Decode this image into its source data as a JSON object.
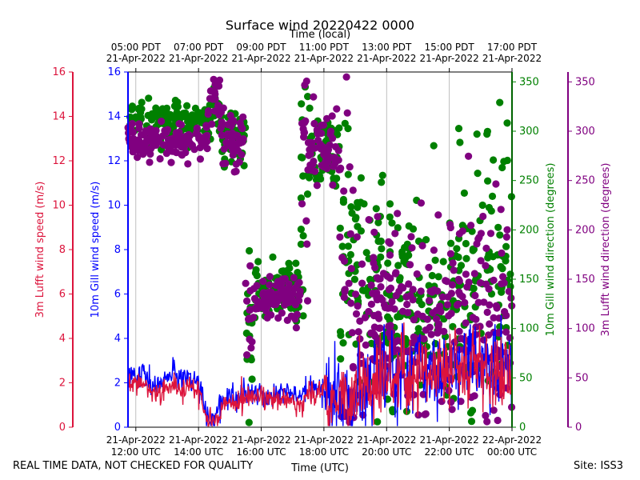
{
  "chart_data": {
    "type": "scatter",
    "title": "Surface wind 20220422 0000",
    "top_axis_label": "Time (local)",
    "xlabel": "Time (UTC)",
    "x_range_hours_utc": [
      11.75,
      24.0
    ],
    "bottom_ticks": [
      {
        "t": 12,
        "line1": "21-Apr-2022",
        "line2": "12:00 UTC"
      },
      {
        "t": 14,
        "line1": "21-Apr-2022",
        "line2": "14:00 UTC"
      },
      {
        "t": 16,
        "line1": "21-Apr-2022",
        "line2": "16:00 UTC"
      },
      {
        "t": 18,
        "line1": "21-Apr-2022",
        "line2": "18:00 UTC"
      },
      {
        "t": 20,
        "line1": "21-Apr-2022",
        "line2": "20:00 UTC"
      },
      {
        "t": 22,
        "line1": "21-Apr-2022",
        "line2": "22:00 UTC"
      },
      {
        "t": 24,
        "line1": "22-Apr-2022",
        "line2": "00:00 UTC"
      }
    ],
    "top_ticks": [
      {
        "t": 12,
        "line1": "05:00 PDT",
        "line2": "21-Apr-2022"
      },
      {
        "t": 14,
        "line1": "07:00 PDT",
        "line2": "21-Apr-2022"
      },
      {
        "t": 16,
        "line1": "09:00 PDT",
        "line2": "21-Apr-2022"
      },
      {
        "t": 18,
        "line1": "11:00 PDT",
        "line2": "21-Apr-2022"
      },
      {
        "t": 20,
        "line1": "13:00 PDT",
        "line2": "21-Apr-2022"
      },
      {
        "t": 22,
        "line1": "15:00 PDT",
        "line2": "21-Apr-2022"
      },
      {
        "t": 24,
        "line1": "17:00 PDT",
        "line2": "21-Apr-2022"
      }
    ],
    "axes": {
      "lufft_speed": {
        "label": "3m Lufft wind speed (m/s)",
        "ylim": [
          0,
          16
        ],
        "ticks": [
          0,
          2,
          4,
          6,
          8,
          10,
          12,
          14,
          16
        ],
        "color": "#dc143c"
      },
      "gill_speed": {
        "label": "10m Gill wind speed (m/s)",
        "ylim": [
          0,
          16
        ],
        "ticks": [
          0,
          2,
          4,
          6,
          8,
          10,
          12,
          14,
          16
        ],
        "color": "#0000ff"
      },
      "gill_dir": {
        "label": "10m Gill wind direction (degrees)",
        "ylim": [
          0,
          360
        ],
        "ticks": [
          0,
          50,
          100,
          150,
          200,
          250,
          300,
          350
        ],
        "color": "#008000"
      },
      "lufft_dir": {
        "label": "3m Lufft wind direction (degrees)",
        "ylim": [
          0,
          360
        ],
        "ticks": [
          0,
          50,
          100,
          150,
          200,
          250,
          300,
          350
        ],
        "color": "#800080"
      }
    },
    "series": [
      {
        "name": "10m Gill wind speed",
        "kind": "line",
        "color": "#0000ff",
        "x": [
          11.75,
          12.0,
          12.25,
          12.5,
          12.75,
          13.0,
          13.25,
          13.5,
          13.75,
          14.0,
          14.1,
          14.25,
          14.4,
          14.5,
          14.6,
          14.75,
          15.0,
          15.25,
          15.5,
          15.75,
          16.0,
          16.25,
          16.5,
          16.75,
          17.0,
          17.25,
          17.5,
          17.75,
          18.0,
          18.25,
          18.5,
          18.75,
          19.0,
          19.25,
          19.5,
          19.75,
          20.0,
          20.25,
          20.5,
          20.75,
          21.0,
          21.25,
          21.5,
          21.75,
          22.0,
          22.25,
          22.5,
          22.75,
          23.0,
          23.25,
          23.5,
          23.75,
          24.0
        ],
        "y": [
          2.2,
          2.3,
          2.6,
          2.0,
          1.8,
          2.3,
          2.4,
          2.2,
          2.3,
          2.1,
          1.5,
          0.6,
          0.4,
          0.3,
          0.6,
          1.0,
          1.5,
          1.3,
          1.6,
          1.5,
          1.7,
          1.3,
          1.5,
          1.6,
          1.4,
          1.3,
          1.8,
          1.6,
          1.9,
          1.5,
          1.7,
          1.2,
          1.8,
          2.0,
          1.8,
          2.5,
          2.7,
          2.5,
          2.8,
          2.6,
          3.0,
          2.4,
          2.6,
          3.0,
          2.9,
          2.7,
          2.8,
          3.0,
          2.6,
          2.4,
          2.8,
          3.2,
          3.0
        ]
      },
      {
        "name": "3m Lufft wind speed",
        "kind": "line",
        "color": "#dc143c",
        "x": [
          11.75,
          12.0,
          12.25,
          12.5,
          12.75,
          13.0,
          13.25,
          13.5,
          13.75,
          14.0,
          14.1,
          14.25,
          14.4,
          14.5,
          14.6,
          14.75,
          15.0,
          15.25,
          15.5,
          15.75,
          16.0,
          16.25,
          16.5,
          16.75,
          17.0,
          17.25,
          17.5,
          17.75,
          18.0,
          18.25,
          18.5,
          18.75,
          19.0,
          19.25,
          19.5,
          19.75,
          20.0,
          20.25,
          20.5,
          20.75,
          21.0,
          21.25,
          21.5,
          21.75,
          22.0,
          22.25,
          22.5,
          22.75,
          23.0,
          23.25,
          23.5,
          23.75,
          24.0
        ],
        "y": [
          1.8,
          1.9,
          2.1,
          1.6,
          1.5,
          1.9,
          1.8,
          1.6,
          1.8,
          1.7,
          1.2,
          0.4,
          0.2,
          0.2,
          0.4,
          0.8,
          1.2,
          1.1,
          1.4,
          1.3,
          1.4,
          1.1,
          1.3,
          1.4,
          1.2,
          1.1,
          1.6,
          1.4,
          1.6,
          1.3,
          1.5,
          1.0,
          1.5,
          1.7,
          1.6,
          2.2,
          2.4,
          2.2,
          2.5,
          2.3,
          2.7,
          2.2,
          2.4,
          2.8,
          2.7,
          2.6,
          2.7,
          2.9,
          2.5,
          2.3,
          2.6,
          3.0,
          2.8
        ]
      },
      {
        "name": "10m Gill wind direction",
        "kind": "scatter",
        "color": "#008000",
        "clusters": [
          {
            "t": [
              11.75,
              14.3
            ],
            "mean": 310,
            "sd": 10
          },
          {
            "t": [
              14.3,
              14.75
            ],
            "mean": 320,
            "sd": 12
          },
          {
            "t": [
              14.75,
              15.5
            ],
            "mean": 295,
            "sd": 20
          },
          {
            "t": [
              15.5,
              15.75
            ],
            "mean": 90,
            "sd": 40
          },
          {
            "t": [
              15.75,
              17.25
            ],
            "mean": 140,
            "sd": 15
          },
          {
            "t": [
              17.25,
              17.5
            ],
            "mean": 230,
            "sd": 60
          },
          {
            "t": [
              17.5,
              18.5
            ],
            "mean": 285,
            "sd": 22
          },
          {
            "t": [
              18.5,
              19.0
            ],
            "mean": 180,
            "sd": 90
          },
          {
            "t": [
              19.0,
              20.0
            ],
            "mean": 140,
            "sd": 55
          },
          {
            "t": [
              20.0,
              22.0
            ],
            "mean": 130,
            "sd": 55
          },
          {
            "t": [
              22.0,
              24.0
            ],
            "mean": 150,
            "sd": 70
          }
        ]
      },
      {
        "name": "3m Lufft wind direction",
        "kind": "scatter",
        "color": "#800080",
        "clusters": [
          {
            "t": [
              11.75,
              14.3
            ],
            "mean": 290,
            "sd": 8
          },
          {
            "t": [
              14.3,
              14.75
            ],
            "mean": 325,
            "sd": 15
          },
          {
            "t": [
              14.75,
              15.5
            ],
            "mean": 290,
            "sd": 15
          },
          {
            "t": [
              15.5,
              15.75
            ],
            "mean": 110,
            "sd": 40
          },
          {
            "t": [
              15.75,
              17.25
            ],
            "mean": 130,
            "sd": 12
          },
          {
            "t": [
              17.25,
              17.5
            ],
            "mean": 250,
            "sd": 60
          },
          {
            "t": [
              17.5,
              18.5
            ],
            "mean": 280,
            "sd": 18
          },
          {
            "t": [
              18.5,
              19.0
            ],
            "mean": 150,
            "sd": 100
          },
          {
            "t": [
              19.0,
              20.0
            ],
            "mean": 115,
            "sd": 40
          },
          {
            "t": [
              20.0,
              22.0
            ],
            "mean": 110,
            "sd": 45
          },
          {
            "t": [
              22.0,
              24.0
            ],
            "mean": 120,
            "sd": 60
          }
        ]
      }
    ]
  },
  "footer": {
    "disclaimer": "REAL TIME DATA, NOT CHECKED FOR QUALITY",
    "site": "Site: ISS3"
  }
}
